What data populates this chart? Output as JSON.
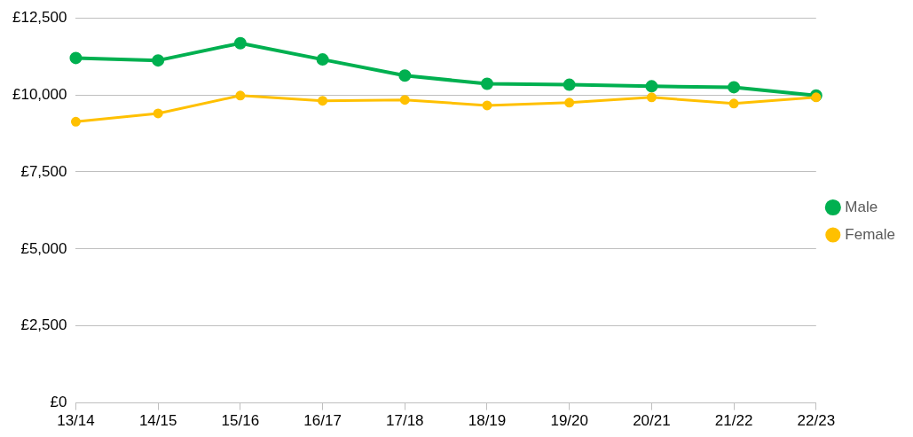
{
  "chart_data": {
    "type": "line",
    "categories": [
      "13/14",
      "14/15",
      "15/16",
      "16/17",
      "17/18",
      "18/19",
      "19/20",
      "20/21",
      "21/22",
      "22/23"
    ],
    "series": [
      {
        "name": "Male",
        "color": "#00b050",
        "values": [
          11200,
          11120,
          11680,
          11150,
          10630,
          10360,
          10330,
          10280,
          10250,
          9980
        ]
      },
      {
        "name": "Female",
        "color": "#ffc000",
        "values": [
          9130,
          9400,
          9980,
          9810,
          9840,
          9660,
          9750,
          9920,
          9720,
          9920
        ]
      }
    ],
    "ylim": [
      0,
      12500
    ],
    "yticks": [
      {
        "value": 0,
        "label": "£0"
      },
      {
        "value": 2500,
        "label": "£2,500"
      },
      {
        "value": 5000,
        "label": "£5,000"
      },
      {
        "value": 7500,
        "label": "£7,500"
      },
      {
        "value": 10000,
        "label": "£10,000"
      },
      {
        "value": 12500,
        "label": "£12,500"
      }
    ],
    "grid": "y",
    "legend": "right",
    "marker": "circle",
    "line_style": "solid"
  }
}
